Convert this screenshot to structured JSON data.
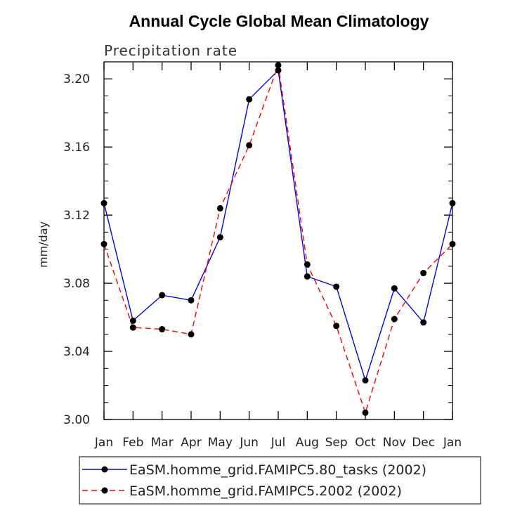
{
  "chart_data": {
    "type": "line",
    "title": "Annual Cycle Global Mean Climatology",
    "subtitle": "Precipitation rate",
    "xlabel": "",
    "ylabel": "mm/day",
    "categories": [
      "Jan",
      "Feb",
      "Mar",
      "Apr",
      "May",
      "Jun",
      "Jul",
      "Aug",
      "Sep",
      "Oct",
      "Nov",
      "Dec",
      "Jan"
    ],
    "ylim": [
      3.0,
      3.21
    ],
    "yticks": [
      "3.00",
      "3.04",
      "3.08",
      "3.12",
      "3.16",
      "3.20"
    ],
    "grid": false,
    "legend": "bottom",
    "series": [
      {
        "name": "EaSM.homme_grid.FAMIPC5.80_tasks (2002)",
        "color": "#0000ff",
        "dash": "solid",
        "values": [
          3.127,
          3.058,
          3.073,
          3.07,
          3.107,
          3.188,
          3.205,
          3.084,
          3.078,
          3.023,
          3.077,
          3.057,
          3.127
        ]
      },
      {
        "name": "EaSM.homme_grid.FAMIPC5.2002 (2002)",
        "color": "#ff0000",
        "dash": "dashed",
        "values": [
          3.103,
          3.054,
          3.053,
          3.05,
          3.124,
          3.161,
          3.208,
          3.091,
          3.055,
          3.004,
          3.059,
          3.086,
          3.103
        ]
      }
    ]
  }
}
